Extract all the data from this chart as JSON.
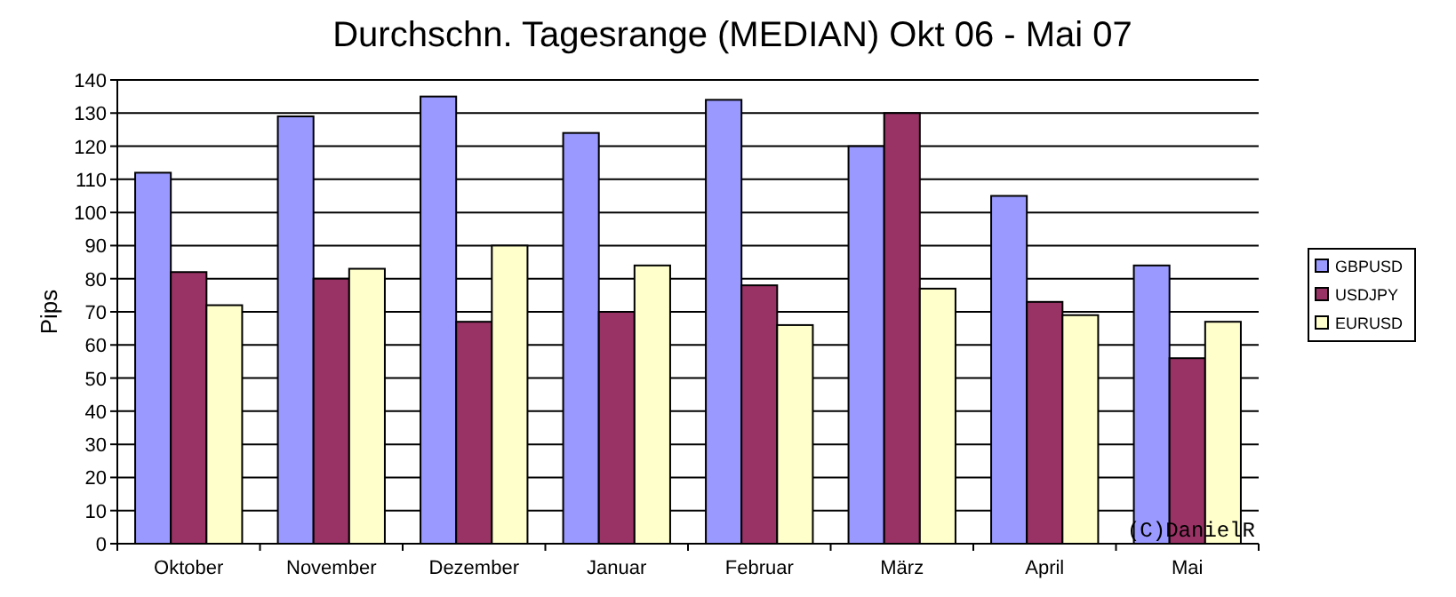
{
  "chart_data": {
    "type": "bar",
    "title": "Durchschn. Tagesrange (MEDIAN) Okt 06 - Mai 07",
    "ylabel": "Pips",
    "categories": [
      "Oktober",
      "November",
      "Dezember",
      "Januar",
      "Februar",
      "März",
      "April",
      "Mai"
    ],
    "series": [
      {
        "name": "GBPUSD",
        "color": "#9999ff",
        "values": [
          112,
          129,
          135,
          124,
          134,
          120,
          105,
          84
        ]
      },
      {
        "name": "USDJPY",
        "color": "#993366",
        "values": [
          82,
          80,
          67,
          70,
          78,
          130,
          73,
          56
        ]
      },
      {
        "name": "EURUSD",
        "color": "#ffffcc",
        "values": [
          72,
          83,
          90,
          84,
          66,
          77,
          69,
          67
        ]
      }
    ],
    "ylim": [
      0,
      140
    ],
    "yticks": [
      0,
      10,
      20,
      30,
      40,
      50,
      60,
      70,
      80,
      90,
      100,
      110,
      120,
      130,
      140
    ],
    "grid": "y",
    "legend": "right",
    "annotations": [
      "(C)DanielR"
    ]
  }
}
